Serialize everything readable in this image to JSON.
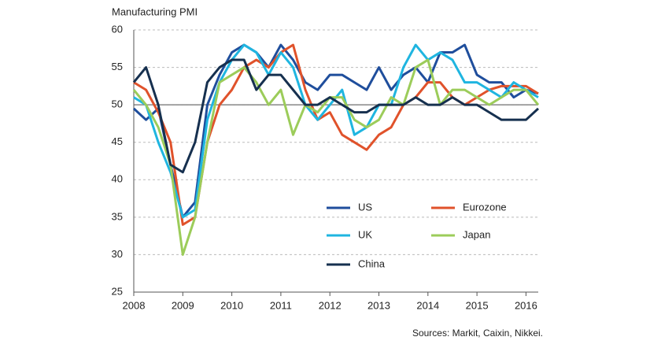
{
  "chart_data": {
    "type": "line",
    "title": "Manufacturing  PMI",
    "source": "Sources: Markit, Caixin, Nikkei.",
    "x": [
      2008,
      2008.25,
      2008.5,
      2008.75,
      2009,
      2009.25,
      2009.5,
      2009.75,
      2010,
      2010.25,
      2010.5,
      2010.75,
      2011,
      2011.25,
      2011.5,
      2011.75,
      2012,
      2012.25,
      2012.5,
      2012.75,
      2013,
      2013.25,
      2013.5,
      2013.75,
      2014,
      2014.25,
      2014.5,
      2014.75,
      2015,
      2015.25,
      2015.5,
      2015.75,
      2016,
      2016.25
    ],
    "series": [
      {
        "name": "US",
        "color": "#1f4e9c",
        "values": [
          49.5,
          48,
          49.5,
          42,
          35,
          37,
          50,
          54,
          57,
          58,
          57,
          55,
          58,
          56,
          53,
          52,
          54,
          54,
          53,
          52,
          55,
          52,
          54,
          55,
          53,
          57,
          57,
          58,
          54,
          53,
          53,
          51,
          52,
          51.5
        ]
      },
      {
        "name": "Eurozone",
        "color": "#e0522b",
        "values": [
          53,
          52,
          49,
          45,
          34,
          35,
          45,
          50,
          52,
          55,
          56,
          55,
          57,
          58,
          52,
          48,
          49,
          46,
          45,
          44,
          46,
          47,
          50,
          51,
          53,
          53,
          51,
          50,
          51,
          52,
          52.5,
          52.5,
          52.5,
          51.5
        ]
      },
      {
        "name": "UK",
        "color": "#1fb5e0",
        "values": [
          51,
          50,
          45,
          41,
          35,
          36,
          48,
          53,
          56,
          58,
          57,
          54,
          57,
          55,
          50,
          48,
          50,
          52,
          46,
          47,
          50,
          50,
          55,
          58,
          56,
          57,
          56,
          53,
          53,
          52,
          51,
          53,
          52,
          51
        ]
      },
      {
        "name": "Japan",
        "color": "#9ccc5a",
        "values": [
          52,
          50,
          47,
          42,
          30,
          35,
          45,
          53,
          54,
          55,
          53,
          50,
          52,
          46,
          50,
          49,
          51,
          51,
          48,
          47,
          48,
          51,
          50,
          55,
          56,
          50,
          52,
          52,
          51,
          50,
          51,
          52,
          52,
          50
        ]
      },
      {
        "name": "China",
        "color": "#16304f",
        "values": [
          53,
          55,
          50,
          42,
          41,
          45,
          53,
          55,
          56,
          56,
          52,
          54,
          54,
          52,
          50,
          50,
          51,
          50,
          49,
          49,
          50,
          50,
          50,
          51,
          50,
          50,
          51,
          50,
          50,
          49,
          48,
          48,
          48,
          49.5
        ]
      }
    ],
    "xlim": [
      2008,
      2016.25
    ],
    "xticks": [
      2008,
      2009,
      2010,
      2011,
      2012,
      2013,
      2014,
      2015,
      2016
    ],
    "ylim": [
      25,
      60
    ],
    "yticks": [
      25,
      30,
      35,
      40,
      45,
      50,
      55,
      60
    ],
    "grid": true,
    "hline": 50
  }
}
